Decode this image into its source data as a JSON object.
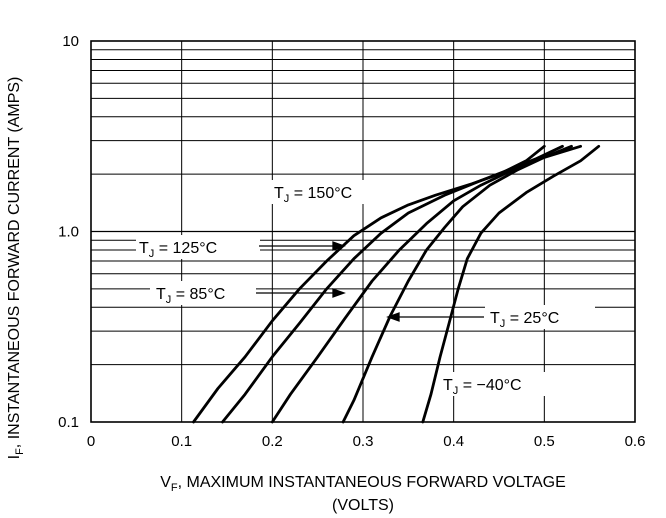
{
  "chart_data": {
    "type": "line",
    "title": "",
    "xlabel": {
      "main": "V",
      "sub": "F",
      "rest": ", MAXIMUM INSTANTANEOUS FORWARD VOLTAGE",
      "line2": "(VOLTS)"
    },
    "ylabel": {
      "main": "I",
      "sub": "F",
      "rest": ", INSTANTANEOUS FORWARD CURRENT (AMPS)"
    },
    "xlim": [
      0,
      0.6
    ],
    "ylim": [
      0.1,
      10
    ],
    "yscale": "log",
    "grid": true,
    "x_ticks": [
      "0",
      "0.1",
      "0.2",
      "0.3",
      "0.4",
      "0.5",
      "0.6"
    ],
    "y_ticks": [
      "0.1",
      "1.0",
      "10"
    ],
    "series": [
      {
        "name": "T_J = 150°C",
        "points": [
          [
            0.113,
            0.1
          ],
          [
            0.14,
            0.15
          ],
          [
            0.17,
            0.22
          ],
          [
            0.2,
            0.34
          ],
          [
            0.23,
            0.5
          ],
          [
            0.26,
            0.7
          ],
          [
            0.29,
            0.95
          ],
          [
            0.32,
            1.18
          ],
          [
            0.35,
            1.38
          ],
          [
            0.38,
            1.55
          ],
          [
            0.42,
            1.78
          ],
          [
            0.45,
            2.0
          ],
          [
            0.48,
            2.35
          ],
          [
            0.5,
            2.8
          ]
        ]
      },
      {
        "name": "T_J = 125°C",
        "points": [
          [
            0.145,
            0.1
          ],
          [
            0.17,
            0.14
          ],
          [
            0.2,
            0.22
          ],
          [
            0.23,
            0.33
          ],
          [
            0.26,
            0.5
          ],
          [
            0.29,
            0.72
          ],
          [
            0.32,
            0.98
          ],
          [
            0.35,
            1.25
          ],
          [
            0.39,
            1.55
          ],
          [
            0.43,
            1.85
          ],
          [
            0.46,
            2.1
          ],
          [
            0.49,
            2.4
          ],
          [
            0.52,
            2.8
          ]
        ]
      },
      {
        "name": "T_J = 85°C",
        "points": [
          [
            0.2,
            0.1
          ],
          [
            0.22,
            0.14
          ],
          [
            0.25,
            0.22
          ],
          [
            0.28,
            0.35
          ],
          [
            0.31,
            0.55
          ],
          [
            0.34,
            0.8
          ],
          [
            0.37,
            1.1
          ],
          [
            0.4,
            1.45
          ],
          [
            0.43,
            1.75
          ],
          [
            0.46,
            2.05
          ],
          [
            0.49,
            2.35
          ],
          [
            0.53,
            2.8
          ]
        ]
      },
      {
        "name": "T_J = 25°C",
        "points": [
          [
            0.278,
            0.1
          ],
          [
            0.29,
            0.13
          ],
          [
            0.31,
            0.22
          ],
          [
            0.33,
            0.36
          ],
          [
            0.35,
            0.55
          ],
          [
            0.37,
            0.8
          ],
          [
            0.39,
            1.05
          ],
          [
            0.41,
            1.35
          ],
          [
            0.44,
            1.75
          ],
          [
            0.47,
            2.1
          ],
          [
            0.5,
            2.45
          ],
          [
            0.54,
            2.8
          ]
        ]
      },
      {
        "name": "T_J = -40°C",
        "points": [
          [
            0.366,
            0.1
          ],
          [
            0.375,
            0.14
          ],
          [
            0.385,
            0.22
          ],
          [
            0.395,
            0.33
          ],
          [
            0.405,
            0.5
          ],
          [
            0.415,
            0.72
          ],
          [
            0.43,
            0.98
          ],
          [
            0.45,
            1.25
          ],
          [
            0.48,
            1.6
          ],
          [
            0.51,
            1.95
          ],
          [
            0.54,
            2.35
          ],
          [
            0.56,
            2.8
          ]
        ]
      }
    ],
    "annotations": [
      {
        "main": "T",
        "sub": "J",
        "rest": " = 150°C"
      },
      {
        "main": "T",
        "sub": "J",
        "rest": " = 125°C"
      },
      {
        "main": "T",
        "sub": "J",
        "rest": " = 85°C"
      },
      {
        "main": "T",
        "sub": "J",
        "rest": " = 25°C"
      },
      {
        "main": "T",
        "sub": "J",
        "rest": " = −40°C"
      }
    ]
  }
}
